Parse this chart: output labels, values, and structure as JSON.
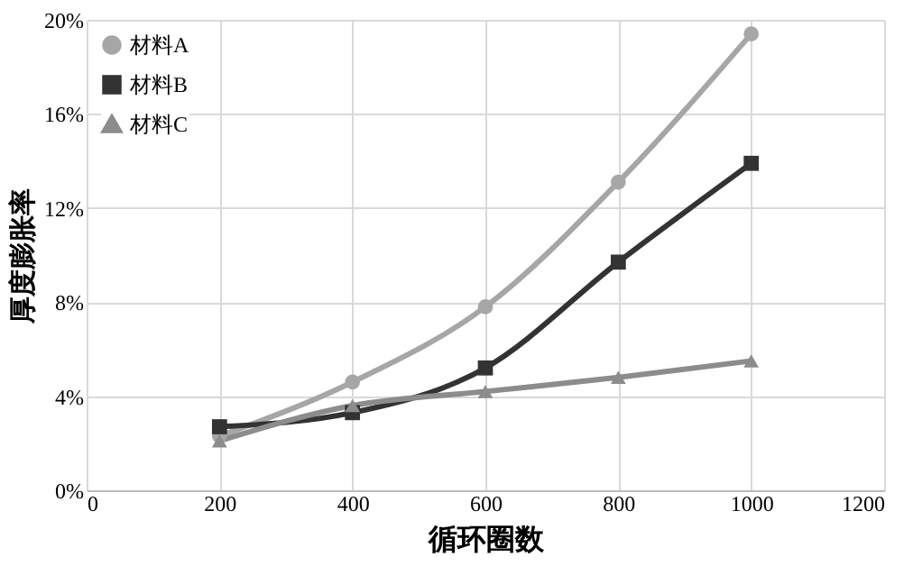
{
  "chart_data": {
    "type": "line",
    "xlabel": "循环圈数",
    "ylabel": "厚度膨胀率",
    "x": [
      200,
      400,
      600,
      800,
      1000
    ],
    "xlim": [
      0,
      1200
    ],
    "xticks": [
      0,
      200,
      400,
      600,
      800,
      1000,
      1200
    ],
    "ylim": [
      0,
      20
    ],
    "yticks": [
      {
        "value": 0,
        "label": "0%"
      },
      {
        "value": 4,
        "label": "4%"
      },
      {
        "value": 8,
        "label": "8%"
      },
      {
        "value": 12,
        "label": "12%"
      },
      {
        "value": 16,
        "label": "16%"
      },
      {
        "value": 20,
        "label": "20%"
      }
    ],
    "grid": true,
    "legend": "top left",
    "line_style": "solid",
    "series": [
      {
        "name": "材料A",
        "color": "#a6a6a6",
        "marker": "circle",
        "values": [
          2.3,
          4.6,
          7.8,
          13.1,
          19.4
        ]
      },
      {
        "name": "材料B",
        "color": "#333333",
        "marker": "square",
        "values": [
          2.7,
          3.3,
          5.2,
          9.7,
          13.9
        ]
      },
      {
        "name": "材料C",
        "color": "#8c8c8c",
        "marker": "triangle",
        "values": [
          2.1,
          3.6,
          4.2,
          4.8,
          5.5
        ]
      }
    ]
  }
}
